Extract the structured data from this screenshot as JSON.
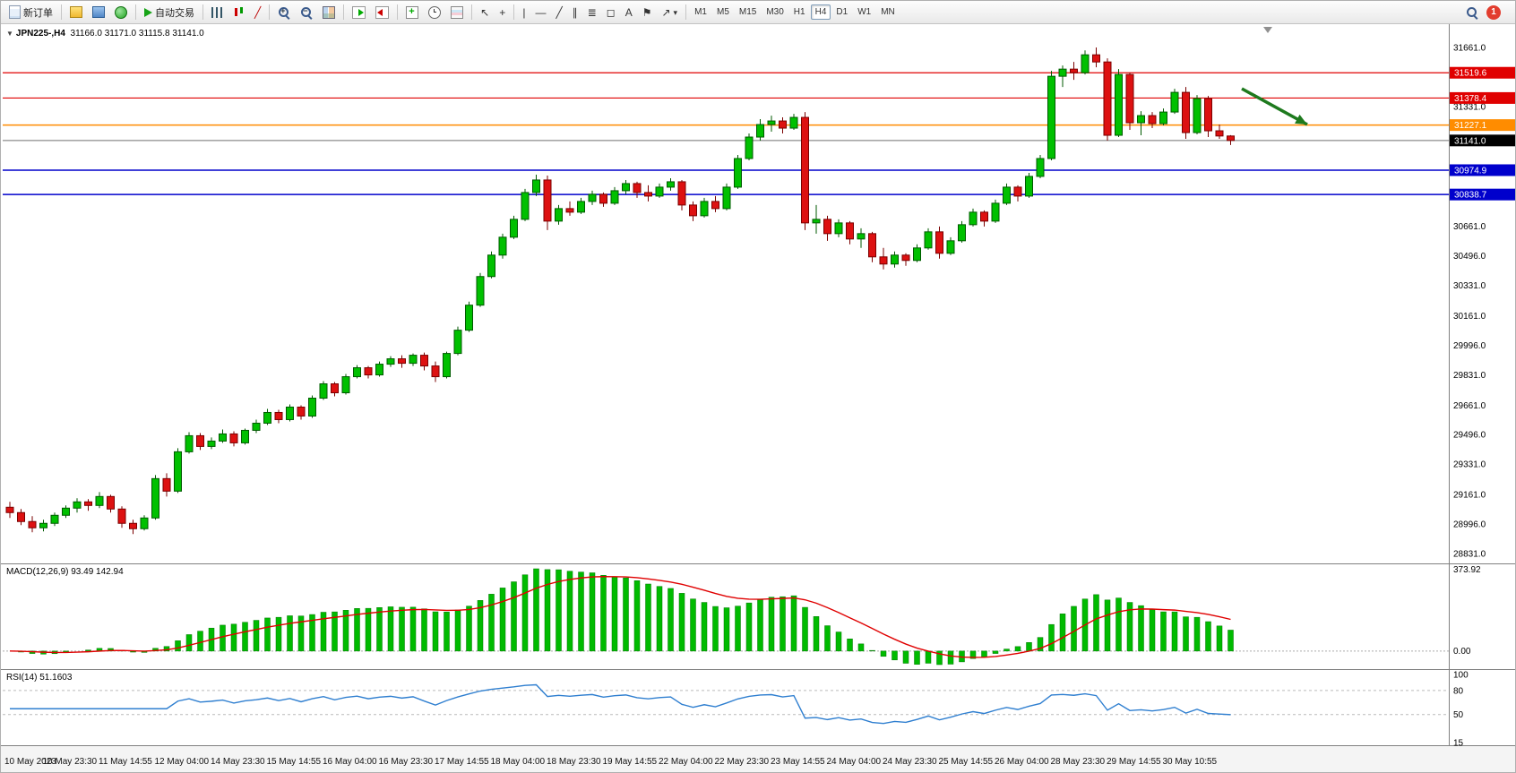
{
  "toolbar": {
    "new_order_label": "新订单",
    "autotrading_label": "自动交易",
    "timeframes": [
      "M1",
      "M5",
      "M15",
      "M30",
      "H1",
      "H4",
      "D1",
      "W1",
      "MN"
    ],
    "active_timeframe": "H4",
    "notification_count": "1"
  },
  "icons": {
    "new-order": "css-shape",
    "market-watch": "css-shape",
    "data-window": "css-shape",
    "navigator": "css-shape",
    "autotrading-play": "css-shape",
    "bar-chart": "css-shape",
    "candlestick-chart": "css-shape",
    "line-chart": "╱",
    "zoom-in": "css-shape",
    "zoom-out": "css-shape",
    "tile-windows": "css-shape",
    "auto-scroll": "css-shape",
    "chart-shift": "css-shape",
    "indicators": "css-shape",
    "periods": "css-shape",
    "templates": "css-shape",
    "cursor": "↖",
    "crosshair": "+",
    "vertical-line": "|",
    "horizontal-line": "—",
    "trendline": "╱",
    "channel": "∥",
    "fibonacci": "≣",
    "shapes": "◻",
    "text": "A",
    "text-label": "⚑",
    "arrows": "↗",
    "chevron-down": "▾",
    "search": "css-shape",
    "collapse": "▼",
    "shift-marker": "▼"
  },
  "chart": {
    "symbol_period": "JPN225-,H4",
    "ohlc_text": "31166.0 31171.0 31115.8 31141.0"
  },
  "price_axis": {
    "labels": [
      "31661.0",
      "31496.0",
      "31331.0",
      "31166.0",
      "31001.0",
      "30836.0",
      "30661.0",
      "30496.0",
      "30331.0",
      "30161.0",
      "29996.0",
      "29831.0",
      "29661.0",
      "29496.0",
      "29331.0",
      "29161.0",
      "28996.0",
      "28831.0"
    ]
  },
  "hlines": [
    {
      "label": "31519.6",
      "value": 31519.6,
      "line_color": "#e00000",
      "box_color": "#e00000",
      "width": 1.2
    },
    {
      "label": "31378.4",
      "value": 31378.4,
      "line_color": "#e00000",
      "box_color": "#e00000",
      "width": 1.2
    },
    {
      "label": "31227.1",
      "value": 31227.1,
      "line_color": "#ff8c00",
      "box_color": "#ff8c00",
      "width": 1.5
    },
    {
      "label": "31141.0",
      "value": 31141.0,
      "line_color": "#707070",
      "box_color": "#000000",
      "width": 1
    },
    {
      "label": "30974.9",
      "value": 30974.9,
      "line_color": "#0000cc",
      "box_color": "#0000cc",
      "width": 1.5
    },
    {
      "label": "30838.7",
      "value": 30838.7,
      "line_color": "#0000cc",
      "box_color": "#0000cc",
      "width": 1.5
    }
  ],
  "annotation": {
    "type": "arrow",
    "color": "#1e7a1e"
  },
  "indicators": {
    "macd": {
      "label": "MACD(12,26,9) 93.49 142.94",
      "fast": 12,
      "slow": 26,
      "signal": 9,
      "scale_max_label": "373.92",
      "scale_zero_label": "0.00",
      "bar_color": "#00bb00",
      "signal_color": "#e00000"
    },
    "rsi": {
      "label": "RSI(14) 51.1603",
      "period": 14,
      "line_color": "#2f7fd0",
      "scale_labels": [
        "100",
        "80",
        "50",
        "15"
      ],
      "dashed_levels": [
        80,
        50
      ]
    }
  },
  "chart_data": {
    "type": "candlestick",
    "symbol": "JPN225-",
    "timeframe": "H4",
    "last_ohlc": {
      "open": 31166.0,
      "high": 31171.0,
      "low": 31115.8,
      "close": 31141.0
    },
    "price_range": [
      28831,
      31661
    ],
    "horizontal_levels": [
      31519.6,
      31378.4,
      31227.1,
      31141.0,
      30974.9,
      30838.7
    ],
    "up_color": "#00c000",
    "down_color": "#dd1111",
    "time_labels": [
      "10 May 2023",
      "10 May 23:30",
      "11 May 14:55",
      "12 May 04:00",
      "14 May 23:30",
      "15 May 14:55",
      "16 May 04:00",
      "16 May 23:30",
      "17 May 14:55",
      "18 May 04:00",
      "18 May 23:30",
      "19 May 14:55",
      "22 May 04:00",
      "22 May 23:30",
      "23 May 14:55",
      "24 May 04:00",
      "24 May 23:30",
      "25 May 14:55",
      "26 May 04:00",
      "28 May 23:30",
      "29 May 14:55",
      "30 May 10:55"
    ],
    "candles": [
      [
        29090,
        29120,
        29030,
        29060
      ],
      [
        29060,
        29080,
        28990,
        29010
      ],
      [
        29010,
        29040,
        28950,
        28975
      ],
      [
        28975,
        29020,
        28955,
        29000
      ],
      [
        29000,
        29060,
        28985,
        29045
      ],
      [
        29045,
        29100,
        29030,
        29085
      ],
      [
        29085,
        29140,
        29060,
        29120
      ],
      [
        29120,
        29135,
        29070,
        29100
      ],
      [
        29100,
        29175,
        29085,
        29150
      ],
      [
        29150,
        29160,
        29060,
        29080
      ],
      [
        29080,
        29095,
        28975,
        29000
      ],
      [
        29000,
        29020,
        28940,
        28970
      ],
      [
        28970,
        29045,
        28960,
        29030
      ],
      [
        29030,
        29270,
        29020,
        29250
      ],
      [
        29250,
        29280,
        29150,
        29180
      ],
      [
        29180,
        29420,
        29170,
        29400
      ],
      [
        29400,
        29510,
        29390,
        29490
      ],
      [
        29490,
        29505,
        29410,
        29430
      ],
      [
        29430,
        29480,
        29415,
        29460
      ],
      [
        29460,
        29525,
        29450,
        29500
      ],
      [
        29500,
        29515,
        29430,
        29450
      ],
      [
        29450,
        29530,
        29440,
        29520
      ],
      [
        29520,
        29580,
        29505,
        29560
      ],
      [
        29560,
        29640,
        29550,
        29620
      ],
      [
        29620,
        29635,
        29560,
        29580
      ],
      [
        29580,
        29665,
        29570,
        29650
      ],
      [
        29650,
        29660,
        29580,
        29600
      ],
      [
        29600,
        29715,
        29590,
        29700
      ],
      [
        29700,
        29795,
        29690,
        29780
      ],
      [
        29780,
        29790,
        29710,
        29730
      ],
      [
        29730,
        29835,
        29720,
        29820
      ],
      [
        29820,
        29885,
        29810,
        29870
      ],
      [
        29870,
        29880,
        29810,
        29830
      ],
      [
        29830,
        29905,
        29820,
        29890
      ],
      [
        29890,
        29935,
        29875,
        29920
      ],
      [
        29920,
        29940,
        29870,
        29895
      ],
      [
        29895,
        29950,
        29880,
        29940
      ],
      [
        29940,
        29955,
        29855,
        29880
      ],
      [
        29880,
        29905,
        29790,
        29820
      ],
      [
        29820,
        29960,
        29810,
        29950
      ],
      [
        29950,
        30100,
        29940,
        30080
      ],
      [
        30080,
        30240,
        30070,
        30220
      ],
      [
        30220,
        30400,
        30210,
        30380
      ],
      [
        30380,
        30520,
        30370,
        30500
      ],
      [
        30500,
        30620,
        30480,
        30600
      ],
      [
        30600,
        30720,
        30590,
        30700
      ],
      [
        30700,
        30870,
        30690,
        30850
      ],
      [
        30850,
        30950,
        30830,
        30920
      ],
      [
        30920,
        30945,
        30640,
        30690
      ],
      [
        30690,
        30780,
        30670,
        30760
      ],
      [
        30760,
        30800,
        30720,
        30740
      ],
      [
        30740,
        30820,
        30730,
        30800
      ],
      [
        30800,
        30860,
        30780,
        30840
      ],
      [
        30840,
        30850,
        30770,
        30790
      ],
      [
        30790,
        30880,
        30780,
        30860
      ],
      [
        30860,
        30920,
        30840,
        30900
      ],
      [
        30900,
        30910,
        30820,
        30850
      ],
      [
        30850,
        30890,
        30800,
        30830
      ],
      [
        30830,
        30900,
        30820,
        30880
      ],
      [
        30880,
        30930,
        30860,
        30910
      ],
      [
        30910,
        30920,
        30750,
        30780
      ],
      [
        30780,
        30800,
        30690,
        30720
      ],
      [
        30720,
        30820,
        30710,
        30800
      ],
      [
        30800,
        30830,
        30740,
        30760
      ],
      [
        30760,
        30900,
        30750,
        30880
      ],
      [
        30880,
        31060,
        30870,
        31040
      ],
      [
        31040,
        31180,
        31030,
        31160
      ],
      [
        31160,
        31260,
        31140,
        31230
      ],
      [
        31230,
        31280,
        31190,
        31250
      ],
      [
        31250,
        31270,
        31180,
        31210
      ],
      [
        31210,
        31290,
        31200,
        31270
      ],
      [
        31270,
        31300,
        30640,
        30680
      ],
      [
        30680,
        30780,
        30620,
        30700
      ],
      [
        30700,
        30720,
        30580,
        30620
      ],
      [
        30620,
        30700,
        30600,
        30680
      ],
      [
        30680,
        30690,
        30560,
        30590
      ],
      [
        30590,
        30650,
        30540,
        30620
      ],
      [
        30620,
        30630,
        30460,
        30490
      ],
      [
        30490,
        30540,
        30420,
        30450
      ],
      [
        30450,
        30520,
        30430,
        30500
      ],
      [
        30500,
        30510,
        30440,
        30470
      ],
      [
        30470,
        30560,
        30460,
        30540
      ],
      [
        30540,
        30650,
        30530,
        30630
      ],
      [
        30630,
        30660,
        30480,
        30510
      ],
      [
        30510,
        30600,
        30500,
        30580
      ],
      [
        30580,
        30690,
        30570,
        30670
      ],
      [
        30670,
        30760,
        30660,
        30740
      ],
      [
        30740,
        30750,
        30660,
        30690
      ],
      [
        30690,
        30810,
        30680,
        30790
      ],
      [
        30790,
        30900,
        30780,
        30880
      ],
      [
        30880,
        30890,
        30800,
        30830
      ],
      [
        30830,
        30960,
        30820,
        30940
      ],
      [
        30940,
        31060,
        30930,
        31040
      ],
      [
        31040,
        31530,
        31030,
        31500
      ],
      [
        31500,
        31560,
        31440,
        31540
      ],
      [
        31540,
        31580,
        31480,
        31520
      ],
      [
        31520,
        31645,
        31510,
        31620
      ],
      [
        31620,
        31661,
        31550,
        31580
      ],
      [
        31580,
        31600,
        31140,
        31170
      ],
      [
        31170,
        31540,
        31160,
        31510
      ],
      [
        31510,
        31520,
        31200,
        31240
      ],
      [
        31240,
        31305,
        31170,
        31280
      ],
      [
        31280,
        31300,
        31210,
        31235
      ],
      [
        31235,
        31320,
        31225,
        31300
      ],
      [
        31300,
        31430,
        31290,
        31410
      ],
      [
        31410,
        31440,
        31150,
        31185
      ],
      [
        31185,
        31395,
        31175,
        31375
      ],
      [
        31375,
        31390,
        31160,
        31195
      ],
      [
        31195,
        31230,
        31150,
        31166
      ],
      [
        31166,
        31171,
        31115.8,
        31141
      ]
    ]
  }
}
